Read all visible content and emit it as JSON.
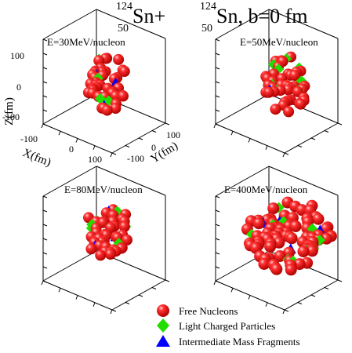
{
  "title": {
    "mass1": "124",
    "z1": "50",
    "el1": "Sn+",
    "mass2": "124",
    "z2": "50",
    "el2": "Sn, b=0 fm"
  },
  "panels": [
    {
      "energy_label": "E=30MeV/nucleon"
    },
    {
      "energy_label": "E=50MeV/nucleon"
    },
    {
      "energy_label": "E=80MeV/nucleon"
    },
    {
      "energy_label": "E=400MeV/nucleon"
    }
  ],
  "axes": {
    "z_label": "Z(fm)",
    "x_label": "X(fm)",
    "y_label": "Y(fm)",
    "z_ticks": [
      "100",
      "0",
      "-100"
    ],
    "x_ticks": [
      "-100",
      "0",
      "100"
    ],
    "y_ticks": [
      "100",
      "0",
      "-100"
    ]
  },
  "legend": [
    {
      "label": "Free Nucleons",
      "marker": "sphere",
      "color": "#e10000"
    },
    {
      "label": "Light Charged Particles",
      "marker": "diamond",
      "color": "#22dd00"
    },
    {
      "label": "Intermediate Mass Fragments",
      "marker": "triangle",
      "color": "#0000ff"
    }
  ],
  "colors": {
    "nucleon": "#e10000",
    "lcp": "#22dd00",
    "imf": "#0000ff"
  }
}
